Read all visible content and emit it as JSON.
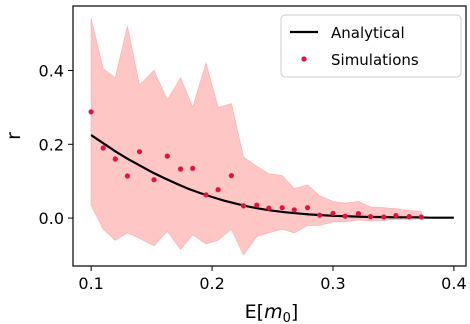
{
  "chart_data": {
    "type": "scatter",
    "xlabel_text": "E[",
    "xlabel_var": "m",
    "xlabel_sub": "0",
    "xlabel_close": "]",
    "ylabel": "r",
    "xlim": [
      0.085,
      0.41
    ],
    "ylim": [
      -0.13,
      0.575
    ],
    "x_ticks": [
      0.1,
      0.2,
      0.3,
      0.4
    ],
    "x_tick_labels": [
      "0.1",
      "0.2",
      "0.3",
      "0.4"
    ],
    "y_ticks": [
      0.0,
      0.2,
      0.4
    ],
    "y_tick_labels": [
      "0.0",
      "0.2",
      "0.4"
    ],
    "grid": false,
    "legend_position": "top-right",
    "series": [
      {
        "name": "Analytical",
        "kind": "line",
        "color": "#000000",
        "x": [
          0.1,
          0.11,
          0.12,
          0.13,
          0.14,
          0.15,
          0.16,
          0.17,
          0.18,
          0.19,
          0.2,
          0.21,
          0.22,
          0.23,
          0.24,
          0.25,
          0.26,
          0.27,
          0.28,
          0.29,
          0.3,
          0.31,
          0.32,
          0.33,
          0.34,
          0.35,
          0.36,
          0.37,
          0.38,
          0.39,
          0.4
        ],
        "y": [
          0.225,
          0.203,
          0.181,
          0.161,
          0.143,
          0.125,
          0.109,
          0.094,
          0.08,
          0.068,
          0.057,
          0.047,
          0.039,
          0.031,
          0.025,
          0.02,
          0.016,
          0.013,
          0.01,
          0.008,
          0.006,
          0.005,
          0.004,
          0.003,
          0.003,
          0.002,
          0.002,
          0.002,
          0.001,
          0.001,
          0.001
        ]
      },
      {
        "name": "Simulations",
        "kind": "scatter",
        "color": "#e0143c",
        "band_color": "#ffb3b3",
        "x": [
          0.1,
          0.11,
          0.12,
          0.13,
          0.14,
          0.152,
          0.163,
          0.174,
          0.184,
          0.195,
          0.205,
          0.216,
          0.226,
          0.237,
          0.247,
          0.258,
          0.268,
          0.279,
          0.289,
          0.3,
          0.31,
          0.321,
          0.331,
          0.342,
          0.352,
          0.363,
          0.373
        ],
        "y": [
          0.288,
          0.19,
          0.16,
          0.114,
          0.18,
          0.104,
          0.168,
          0.133,
          0.135,
          0.063,
          0.077,
          0.115,
          0.033,
          0.035,
          0.027,
          0.028,
          0.022,
          0.028,
          0.008,
          0.013,
          0.005,
          0.012,
          0.004,
          0.003,
          0.007,
          0.004,
          0.003
        ],
        "y_upper": [
          0.54,
          0.405,
          0.38,
          0.52,
          0.36,
          0.4,
          0.32,
          0.38,
          0.3,
          0.42,
          0.3,
          0.31,
          0.165,
          0.14,
          0.12,
          0.115,
          0.08,
          0.09,
          0.06,
          0.045,
          0.04,
          0.045,
          0.03,
          0.028,
          0.025,
          0.02,
          0.018
        ],
        "y_lower": [
          0.035,
          -0.03,
          -0.06,
          -0.04,
          -0.055,
          -0.075,
          -0.035,
          -0.085,
          -0.045,
          -0.07,
          -0.06,
          -0.03,
          -0.1,
          -0.05,
          -0.04,
          -0.03,
          -0.04,
          -0.02,
          -0.02,
          -0.01,
          -0.01,
          -0.005,
          -0.008,
          -0.006,
          -0.003,
          -0.004,
          -0.002
        ]
      }
    ]
  }
}
